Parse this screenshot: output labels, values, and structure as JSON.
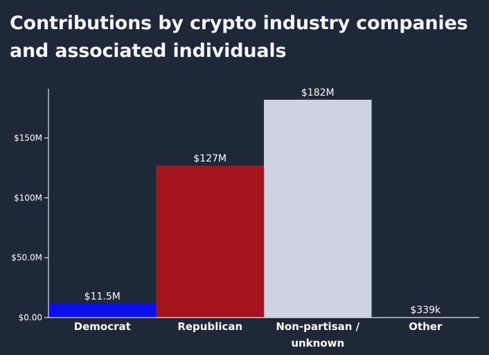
{
  "chart_data": {
    "type": "bar",
    "title": "Contributions by crypto industry companies and associated individuals",
    "xlabel": "",
    "ylabel": "",
    "categories": [
      "Democrat",
      "Republican",
      "Non-partisan / unknown",
      "Other"
    ],
    "category_lines": [
      [
        "Democrat"
      ],
      [
        "Republican"
      ],
      [
        "Non-partisan /",
        "unknown"
      ],
      [
        "Other"
      ]
    ],
    "values": [
      11.5,
      127,
      182,
      0.339
    ],
    "value_labels": [
      "$11.5M",
      "$127M",
      "$182M",
      "$339k"
    ],
    "colors": [
      "#0a0ff0",
      "#a4141b",
      "#cbd4e0",
      "#cbd4e0"
    ],
    "ylim": [
      0,
      190
    ],
    "y_ticks": [
      0,
      50,
      100,
      150
    ],
    "y_tick_labels": [
      "$0.00",
      "$50.0M",
      "$100M",
      "$150M"
    ],
    "grid": false,
    "legend": "none"
  }
}
